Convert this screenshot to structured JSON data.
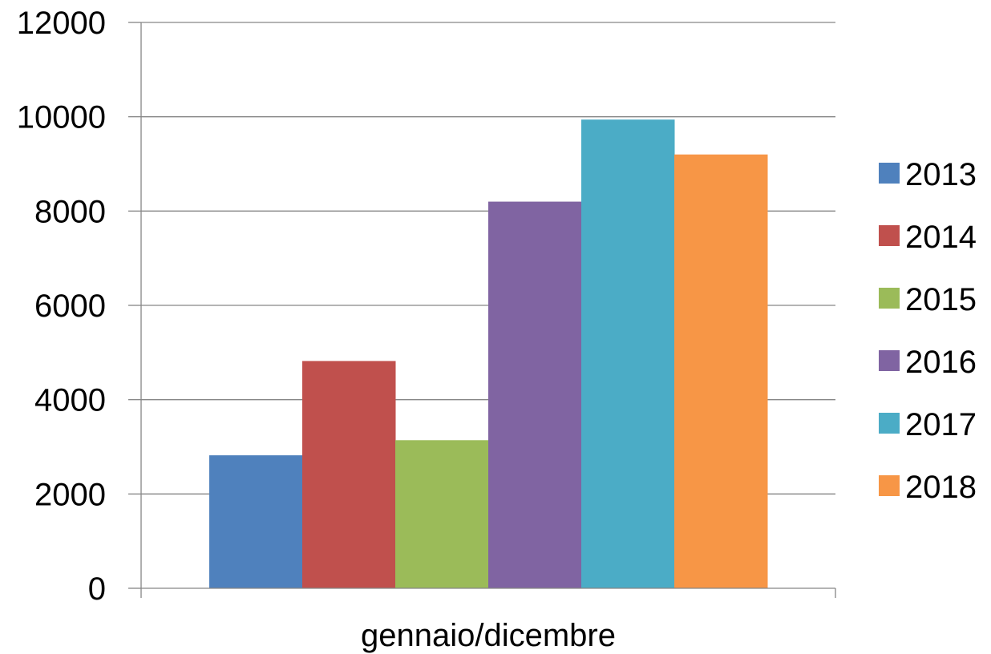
{
  "chart_data": {
    "type": "bar",
    "categories": [
      "gennaio/dicembre"
    ],
    "series": [
      {
        "name": "2013",
        "values": [
          2820
        ],
        "color": "#4F81BD"
      },
      {
        "name": "2014",
        "values": [
          4820
        ],
        "color": "#C0504D"
      },
      {
        "name": "2015",
        "values": [
          3140
        ],
        "color": "#9BBB59"
      },
      {
        "name": "2016",
        "values": [
          8200
        ],
        "color": "#8064A2"
      },
      {
        "name": "2017",
        "values": [
          9940
        ],
        "color": "#4BACC6"
      },
      {
        "name": "2018",
        "values": [
          9200
        ],
        "color": "#F79646"
      }
    ],
    "yticks": [
      "0",
      "2000",
      "4000",
      "6000",
      "8000",
      "10000",
      "12000"
    ],
    "ylim": [
      0,
      12000
    ],
    "grid": true,
    "legend": "right",
    "gridline_color": "#868686",
    "axis_color": "#868686"
  }
}
